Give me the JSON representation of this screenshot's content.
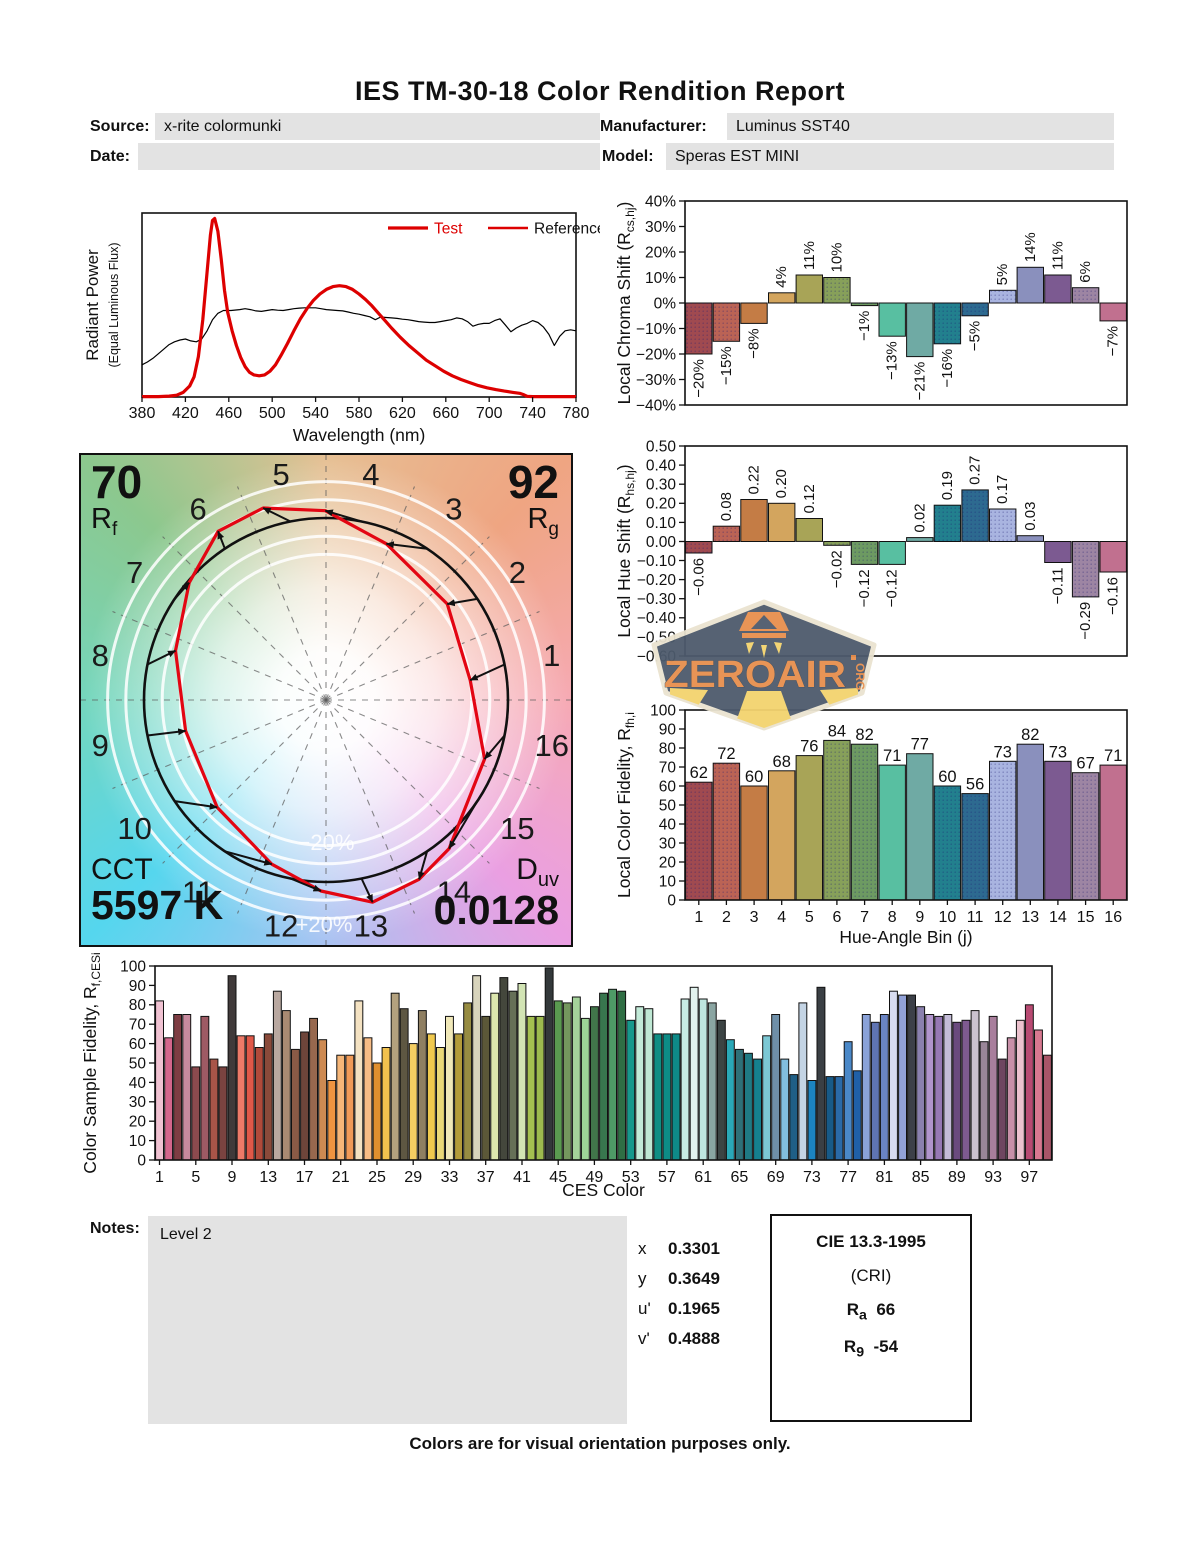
{
  "title": "IES TM-30-18 Color Rendition Report",
  "header": {
    "source_label": "Source:",
    "source_value": "x-rite colormunki",
    "date_label": "Date:",
    "date_value": "",
    "manufacturer_label": "Manufacturer:",
    "manufacturer_value": "Luminus SST40",
    "model_label": "Model:",
    "model_value": "Speras EST MINI"
  },
  "hue_bin_colors": [
    "#a04a50",
    "#bb6355",
    "#c47c45",
    "#d3a55e",
    "#a8a457",
    "#87a05a",
    "#6d9a62",
    "#58bfa1",
    "#6faaa4",
    "#22808e",
    "#2d6a90",
    "#a9b4e0",
    "#8a90bd",
    "#7c5a91",
    "#9d85a3",
    "#c1708f"
  ],
  "dotted_bins": [
    1,
    2,
    6,
    7,
    10,
    11,
    12,
    15
  ],
  "chart_data": [
    {
      "id": "spd",
      "type": "line",
      "xlabel": "Wavelength (nm)",
      "ylabel": "Radiant Power",
      "ylabel2": "(Equal Luminous Flux)",
      "xlim": [
        380,
        780
      ],
      "ylim": [
        0,
        1
      ],
      "grid": false,
      "x_ticks": [
        380,
        420,
        460,
        500,
        540,
        580,
        620,
        660,
        700,
        740,
        780
      ],
      "legend": {
        "test": "Test",
        "reference": "Reference",
        "test_color": "#dd0000",
        "reference_label_color": "#111111"
      },
      "series": [
        {
          "name": "Test",
          "color": "#dd0000",
          "width": 3.2,
          "points": [
            [
              380,
              0.002
            ],
            [
              395,
              0.002
            ],
            [
              405,
              0.005
            ],
            [
              412,
              0.01
            ],
            [
              418,
              0.025
            ],
            [
              424,
              0.06
            ],
            [
              428,
              0.11
            ],
            [
              432,
              0.22
            ],
            [
              436,
              0.42
            ],
            [
              440,
              0.68
            ],
            [
              443,
              0.88
            ],
            [
              445,
              0.96
            ],
            [
              447,
              0.97
            ],
            [
              450,
              0.9
            ],
            [
              453,
              0.75
            ],
            [
              456,
              0.58
            ],
            [
              459,
              0.46
            ],
            [
              463,
              0.36
            ],
            [
              467,
              0.28
            ],
            [
              471,
              0.215
            ],
            [
              475,
              0.165
            ],
            [
              479,
              0.135
            ],
            [
              483,
              0.12
            ],
            [
              488,
              0.115
            ],
            [
              493,
              0.12
            ],
            [
              498,
              0.14
            ],
            [
              503,
              0.175
            ],
            [
              508,
              0.225
            ],
            [
              514,
              0.29
            ],
            [
              520,
              0.36
            ],
            [
              526,
              0.425
            ],
            [
              532,
              0.48
            ],
            [
              538,
              0.525
            ],
            [
              544,
              0.56
            ],
            [
              550,
              0.585
            ],
            [
              556,
              0.6
            ],
            [
              562,
              0.605
            ],
            [
              568,
              0.6
            ],
            [
              574,
              0.585
            ],
            [
              580,
              0.56
            ],
            [
              586,
              0.53
            ],
            [
              592,
              0.495
            ],
            [
              598,
              0.455
            ],
            [
              604,
              0.415
            ],
            [
              610,
              0.375
            ],
            [
              618,
              0.325
            ],
            [
              626,
              0.28
            ],
            [
              634,
              0.24
            ],
            [
              642,
              0.2
            ],
            [
              650,
              0.17
            ],
            [
              658,
              0.14
            ],
            [
              666,
              0.115
            ],
            [
              674,
              0.095
            ],
            [
              682,
              0.078
            ],
            [
              690,
              0.062
            ],
            [
              698,
              0.05
            ],
            [
              706,
              0.04
            ],
            [
              714,
              0.032
            ],
            [
              722,
              0.025
            ],
            [
              728,
              0.02
            ],
            [
              732,
              0.012
            ],
            [
              735,
              0.004
            ],
            [
              740,
              0.002
            ],
            [
              780,
              0.002
            ]
          ]
        },
        {
          "name": "Reference",
          "color": "#000000",
          "width": 1.2,
          "points": [
            [
              380,
              0.175
            ],
            [
              385,
              0.19
            ],
            [
              390,
              0.21
            ],
            [
              395,
              0.235
            ],
            [
              400,
              0.26
            ],
            [
              405,
              0.285
            ],
            [
              410,
              0.3
            ],
            [
              415,
              0.31
            ],
            [
              420,
              0.315
            ],
            [
              425,
              0.305
            ],
            [
              430,
              0.3
            ],
            [
              435,
              0.315
            ],
            [
              440,
              0.36
            ],
            [
              445,
              0.42
            ],
            [
              450,
              0.455
            ],
            [
              455,
              0.47
            ],
            [
              462,
              0.47
            ],
            [
              470,
              0.475
            ],
            [
              475,
              0.48
            ],
            [
              480,
              0.475
            ],
            [
              485,
              0.468
            ],
            [
              490,
              0.465
            ],
            [
              495,
              0.47
            ],
            [
              500,
              0.475
            ],
            [
              505,
              0.472
            ],
            [
              510,
              0.47
            ],
            [
              515,
              0.475
            ],
            [
              520,
              0.48
            ],
            [
              525,
              0.483
            ],
            [
              530,
              0.485
            ],
            [
              540,
              0.485
            ],
            [
              545,
              0.48
            ],
            [
              550,
              0.475
            ],
            [
              560,
              0.47
            ],
            [
              565,
              0.468
            ],
            [
              570,
              0.462
            ],
            [
              575,
              0.455
            ],
            [
              580,
              0.45
            ],
            [
              585,
              0.443
            ],
            [
              590,
              0.436
            ],
            [
              595,
              0.42
            ],
            [
              600,
              0.435
            ],
            [
              605,
              0.432
            ],
            [
              610,
              0.43
            ],
            [
              615,
              0.427
            ],
            [
              620,
              0.423
            ],
            [
              625,
              0.42
            ],
            [
              630,
              0.415
            ],
            [
              635,
              0.41
            ],
            [
              640,
              0.407
            ],
            [
              645,
              0.405
            ],
            [
              650,
              0.405
            ],
            [
              655,
              0.41
            ],
            [
              660,
              0.415
            ],
            [
              665,
              0.42
            ],
            [
              670,
              0.43
            ],
            [
              675,
              0.425
            ],
            [
              680,
              0.41
            ],
            [
              685,
              0.385
            ],
            [
              690,
              0.395
            ],
            [
              695,
              0.4
            ],
            [
              700,
              0.4
            ],
            [
              705,
              0.415
            ],
            [
              710,
              0.425
            ],
            [
              715,
              0.39
            ],
            [
              720,
              0.355
            ],
            [
              725,
              0.375
            ],
            [
              730,
              0.39
            ],
            [
              735,
              0.4
            ],
            [
              740,
              0.415
            ],
            [
              745,
              0.405
            ],
            [
              750,
              0.38
            ],
            [
              755,
              0.34
            ],
            [
              760,
              0.28
            ],
            [
              765,
              0.33
            ],
            [
              770,
              0.36
            ],
            [
              775,
              0.365
            ],
            [
              780,
              0.36
            ]
          ]
        }
      ]
    },
    {
      "id": "chroma_shift",
      "type": "bar",
      "ylabel": "Local Chroma Shift (R",
      "ylabel_sub": "cs,hj",
      "ylabel_tail": ")",
      "ylim": [
        -40,
        40
      ],
      "y_ticks": [
        "40%",
        "30%",
        "20%",
        "10%",
        "0%",
        "−10%",
        "−20%",
        "−30%",
        "−40%"
      ],
      "categories": [
        1,
        2,
        3,
        4,
        5,
        6,
        7,
        8,
        9,
        10,
        11,
        12,
        13,
        14,
        15,
        16
      ],
      "values": [
        -20,
        -15,
        -8,
        4,
        11,
        10,
        -1,
        -13,
        -21,
        -16,
        -5,
        5,
        14,
        11,
        6,
        -7
      ],
      "labels": [
        "−20%",
        "−15%",
        "−8%",
        "4%",
        "11%",
        "10%",
        "−1%",
        "−13%",
        "−21%",
        "−16%",
        "−5%",
        "5%",
        "14%",
        "11%",
        "6%",
        "−7%"
      ]
    },
    {
      "id": "hue_shift",
      "type": "bar",
      "ylabel": "Local Hue Shift (R",
      "ylabel_sub": "hs,hj",
      "ylabel_tail": ")",
      "ylim": [
        -0.6,
        0.5
      ],
      "y_ticks": [
        "0.50",
        "0.40",
        "0.30",
        "0.20",
        "0.10",
        "0.00",
        "−0.10",
        "−0.20",
        "−0.30",
        "−0.40",
        "−0.50",
        "−0.60"
      ],
      "categories": [
        1,
        2,
        3,
        4,
        5,
        6,
        7,
        8,
        9,
        10,
        11,
        12,
        13,
        14,
        15,
        16
      ],
      "values": [
        -0.06,
        0.08,
        0.22,
        0.2,
        0.12,
        -0.02,
        -0.12,
        -0.12,
        0.02,
        0.19,
        0.27,
        0.17,
        0.03,
        -0.11,
        -0.29,
        -0.16
      ],
      "labels": [
        "−0.06",
        "0.08",
        "0.22",
        "0.20",
        "0.12",
        "−0.02",
        "−0.12",
        "−0.12",
        "0.02",
        "0.19",
        "0.27",
        "0.17",
        "0.03",
        "−0.11",
        "−0.29",
        "−0.16"
      ]
    },
    {
      "id": "local_fidelity",
      "type": "bar",
      "ylabel": "Local Color Fidelity, R",
      "ylabel_sub": "fh,i",
      "ylabel_tail": "",
      "xlabel": "Hue-Angle Bin (j)",
      "ylim": [
        0,
        100
      ],
      "y_ticks": [
        "100",
        "90",
        "80",
        "70",
        "60",
        "50",
        "40",
        "30",
        "20",
        "10",
        "0"
      ],
      "x_ticks": [
        1,
        2,
        3,
        4,
        5,
        6,
        7,
        8,
        9,
        10,
        11,
        12,
        13,
        14,
        15,
        16
      ],
      "values": [
        62,
        72,
        60,
        68,
        76,
        84,
        82,
        71,
        77,
        60,
        56,
        73,
        82,
        73,
        67,
        71
      ],
      "labels": [
        "62",
        "72",
        "60",
        "68",
        "76",
        "84",
        "82",
        "71",
        "77",
        "60",
        "56",
        "73",
        "82",
        "73",
        "67",
        "71"
      ]
    },
    {
      "id": "ces",
      "type": "bar",
      "ylabel": "Color Sample Fidelity, R",
      "ylabel_sub": "f,CESi",
      "ylabel_tail": "",
      "xlabel": "CES Color",
      "ylim": [
        0,
        100
      ],
      "y_ticks": [
        "100",
        "90",
        "80",
        "70",
        "60",
        "50",
        "40",
        "30",
        "20",
        "10",
        "0"
      ],
      "x_ticks": [
        1,
        5,
        9,
        13,
        17,
        21,
        25,
        29,
        33,
        37,
        41,
        45,
        49,
        53,
        57,
        61,
        65,
        69,
        73,
        77,
        81,
        85,
        89,
        93,
        97
      ],
      "values": [
        82,
        63,
        75,
        75,
        48,
        74,
        52,
        48,
        95,
        64,
        64,
        58,
        65,
        87,
        77,
        57,
        66,
        73,
        62,
        41,
        54,
        54,
        82,
        63,
        50,
        58,
        86,
        78,
        60,
        77,
        65,
        58,
        74,
        65,
        81,
        95,
        74,
        86,
        94,
        87,
        91,
        74,
        74,
        99,
        82,
        81,
        84,
        73,
        79,
        86,
        88,
        87,
        72,
        79,
        78,
        65,
        65,
        65,
        83,
        89,
        83,
        81,
        72,
        62,
        57,
        55,
        52,
        64,
        75,
        52,
        44,
        81,
        41,
        89,
        43,
        43,
        61,
        46,
        75,
        71,
        75,
        87,
        85,
        85,
        79,
        75,
        74,
        75,
        71,
        72,
        77,
        61,
        74,
        52,
        63,
        72,
        80,
        67,
        54
      ],
      "colors": [
        "#f0c2d2",
        "#d4668c",
        "#7e3d43",
        "#c88a9e",
        "#8c4a4e",
        "#9e5a64",
        "#a85548",
        "#7a4340",
        "#403a3a",
        "#ee7a68",
        "#e05848",
        "#b04a3a",
        "#8a4a3a",
        "#b9a8a0",
        "#a98a72",
        "#8a5a46",
        "#6e453a",
        "#97684e",
        "#cd8a52",
        "#ef9440",
        "#f6b678",
        "#f09a58",
        "#f4e2c2",
        "#f7bc85",
        "#e08f2e",
        "#f2c24e",
        "#b3a17e",
        "#5e5742",
        "#f4ce62",
        "#8f7f62",
        "#f0c94e",
        "#ead878",
        "#f0e8b8",
        "#b39b3a",
        "#978c42",
        "#d8d4bc",
        "#5c5838",
        "#dce6ae",
        "#44473c",
        "#667057",
        "#d2e4b4",
        "#a4c050",
        "#9cba4e",
        "#33383a",
        "#5a9a50",
        "#74975e",
        "#a4d29a",
        "#9ed498",
        "#41754a",
        "#38764e",
        "#4e9a66",
        "#2f6e44",
        "#16988c",
        "#c2ead8",
        "#bfe8d4",
        "#0f8e84",
        "#0d8c86",
        "#0e8a88",
        "#c8ece4",
        "#e2f2ee",
        "#bee6e0",
        "#8aa5a2",
        "#3c4444",
        "#2aa8b8",
        "#2e7078",
        "#1f7a84",
        "#15808e",
        "#7cc8d4",
        "#6e8fa8",
        "#82bede",
        "#1f5f86",
        "#c4d4e4",
        "#1c84c0",
        "#3a3f44",
        "#175a88",
        "#2a6aa8",
        "#4a88c8",
        "#2060a8",
        "#8aa2d8",
        "#5f74b2",
        "#6a84c4",
        "#d8dcf0",
        "#92a2d8",
        "#3c4048",
        "#8a80ae",
        "#b094cc",
        "#9678b4",
        "#c4bcd8",
        "#6a4a7e",
        "#7e5a90",
        "#cac2ce",
        "#9a8698",
        "#a87e9c",
        "#6e4660",
        "#c890a8",
        "#ecc2ce",
        "#b84a72",
        "#d87890",
        "#a85568"
      ]
    }
  ],
  "cvg": {
    "rf_value": "70",
    "r_letter": "R",
    "rf_sub": "f",
    "rg_value": "92",
    "rg_sub": "g",
    "cct_label": "CCT",
    "cct_value": "5597 K",
    "duv_letter": "D",
    "duv_sub": "uv",
    "duv_value": "0.0128",
    "ring_inner_label": "−20%",
    "ring_outer_label": "+20%",
    "bins": [
      "1",
      "2",
      "3",
      "4",
      "5",
      "6",
      "7",
      "8",
      "9",
      "10",
      "11",
      "12",
      "13",
      "14",
      "15",
      "16"
    ]
  },
  "watermark": {
    "text": "ZEROAIR",
    "org": "ORG"
  },
  "notes": {
    "label": "Notes:",
    "value": "Level 2"
  },
  "chromaticity": {
    "rows": [
      {
        "label": "x",
        "value": "0.3301"
      },
      {
        "label": "y",
        "value": "0.3649"
      },
      {
        "label": "u'",
        "value": "0.1965"
      },
      {
        "label": "v'",
        "value": "0.4888"
      }
    ]
  },
  "cie": {
    "title": "CIE 13.3-1995",
    "subtitle": "(CRI)",
    "ra_label": "R",
    "ra_sub": "a",
    "ra_value": "66",
    "r9_label": "R",
    "r9_sub": "9",
    "r9_value": "-54"
  },
  "footer": "Colors are for visual orientation purposes only."
}
